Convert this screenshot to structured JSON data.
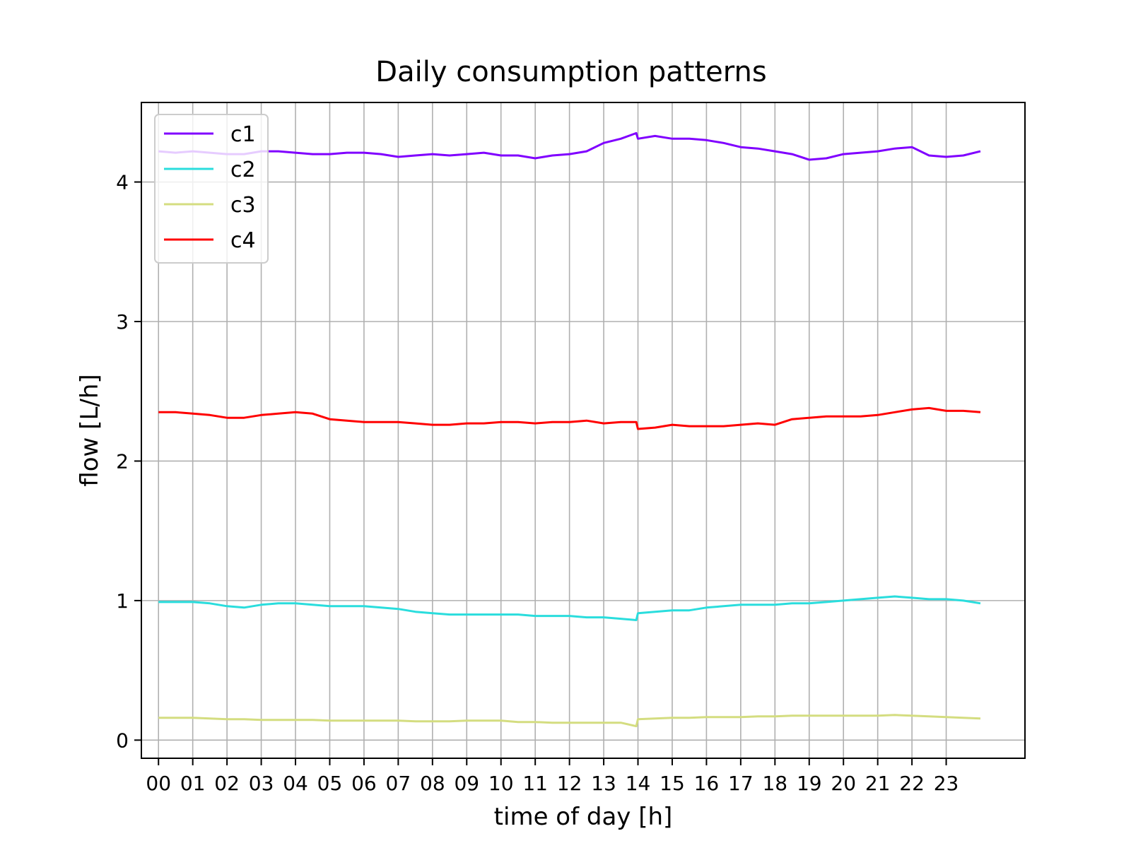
{
  "chart_data": {
    "type": "line",
    "title": "Daily consumption patterns",
    "xlabel": "time of day [h]",
    "ylabel": "flow [L/h]",
    "xlim": [
      -0.5,
      25.3
    ],
    "ylim": [
      -0.13,
      4.57
    ],
    "x_ticks": [
      "00",
      "01",
      "02",
      "03",
      "04",
      "05",
      "06",
      "07",
      "08",
      "09",
      "10",
      "11",
      "12",
      "13",
      "14",
      "15",
      "16",
      "17",
      "18",
      "19",
      "20",
      "21",
      "22",
      "23"
    ],
    "y_ticks": [
      0,
      1,
      2,
      3,
      4
    ],
    "grid": true,
    "legend": "top-left",
    "x": [
      0,
      0.5,
      1,
      1.5,
      2,
      2.5,
      3,
      3.5,
      4,
      4.5,
      5,
      5.5,
      6,
      6.5,
      7,
      7.5,
      8,
      8.5,
      9,
      9.5,
      10,
      10.5,
      11,
      11.5,
      12,
      12.5,
      13,
      13.5,
      13.95,
      14,
      14.5,
      15,
      15.5,
      16,
      16.5,
      17,
      17.5,
      18,
      18.5,
      19,
      19.5,
      20,
      20.5,
      21,
      21.5,
      22,
      22.5,
      23,
      23.5,
      24
    ],
    "series": [
      {
        "name": "c1",
        "color": "#8000ff",
        "values": [
          4.22,
          4.21,
          4.22,
          4.21,
          4.2,
          4.2,
          4.22,
          4.22,
          4.21,
          4.2,
          4.2,
          4.21,
          4.21,
          4.2,
          4.18,
          4.19,
          4.2,
          4.19,
          4.2,
          4.21,
          4.19,
          4.19,
          4.17,
          4.19,
          4.2,
          4.22,
          4.28,
          4.31,
          4.35,
          4.31,
          4.33,
          4.31,
          4.31,
          4.3,
          4.28,
          4.25,
          4.24,
          4.22,
          4.2,
          4.16,
          4.17,
          4.2,
          4.21,
          4.22,
          4.24,
          4.25,
          4.19,
          4.18,
          4.19,
          4.22
        ]
      },
      {
        "name": "c2",
        "color": "#2adddd",
        "values": [
          0.99,
          0.99,
          0.99,
          0.98,
          0.96,
          0.95,
          0.97,
          0.98,
          0.98,
          0.97,
          0.96,
          0.96,
          0.96,
          0.95,
          0.94,
          0.92,
          0.91,
          0.9,
          0.9,
          0.9,
          0.9,
          0.9,
          0.89,
          0.89,
          0.89,
          0.88,
          0.88,
          0.87,
          0.86,
          0.91,
          0.92,
          0.93,
          0.93,
          0.95,
          0.96,
          0.97,
          0.97,
          0.97,
          0.98,
          0.98,
          0.99,
          1.0,
          1.01,
          1.02,
          1.03,
          1.02,
          1.01,
          1.01,
          1.0,
          0.98
        ]
      },
      {
        "name": "c3",
        "color": "#d4dd80",
        "values": [
          0.16,
          0.16,
          0.16,
          0.155,
          0.15,
          0.15,
          0.145,
          0.145,
          0.145,
          0.145,
          0.14,
          0.14,
          0.14,
          0.14,
          0.14,
          0.135,
          0.135,
          0.135,
          0.14,
          0.14,
          0.14,
          0.13,
          0.13,
          0.125,
          0.125,
          0.125,
          0.125,
          0.125,
          0.1,
          0.15,
          0.155,
          0.16,
          0.16,
          0.165,
          0.165,
          0.165,
          0.17,
          0.17,
          0.175,
          0.175,
          0.175,
          0.175,
          0.175,
          0.175,
          0.18,
          0.175,
          0.17,
          0.165,
          0.16,
          0.155
        ]
      },
      {
        "name": "c4",
        "color": "#ff0000",
        "values": [
          2.35,
          2.35,
          2.34,
          2.33,
          2.31,
          2.31,
          2.33,
          2.34,
          2.35,
          2.34,
          2.3,
          2.29,
          2.28,
          2.28,
          2.28,
          2.27,
          2.26,
          2.26,
          2.27,
          2.27,
          2.28,
          2.28,
          2.27,
          2.28,
          2.28,
          2.29,
          2.27,
          2.28,
          2.28,
          2.23,
          2.24,
          2.26,
          2.25,
          2.25,
          2.25,
          2.26,
          2.27,
          2.26,
          2.3,
          2.31,
          2.32,
          2.32,
          2.32,
          2.33,
          2.35,
          2.37,
          2.38,
          2.36,
          2.36,
          2.35
        ]
      }
    ]
  }
}
